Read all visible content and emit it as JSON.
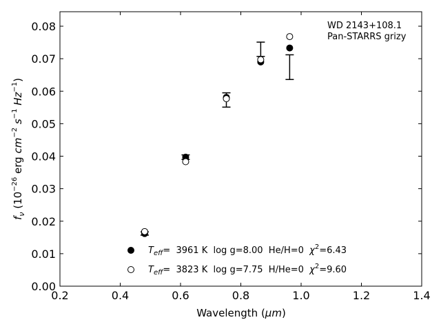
{
  "chart_data": {
    "type": "scatter",
    "title": "",
    "annotation": [
      "WD 2143+108.1",
      "Pan-STARRS grizy"
    ],
    "xlabel": {
      "main": "Wavelength (",
      "unit": "μm",
      "close": ")"
    },
    "ylabel": {
      "f": "f",
      "fsub": "ν",
      "open": " (10",
      "exp1": "−26",
      "erg": " erg ",
      "cm": "cm",
      "exp2": "−2",
      "s": "s",
      "exp3": "−1",
      "Hz": "Hz",
      "exp4": "−1",
      "close": ")"
    },
    "xlim": [
      0.2,
      1.4
    ],
    "ylim": [
      0.0,
      0.085
    ],
    "xticks": [
      0.2,
      0.4,
      0.6,
      0.8,
      1.0,
      1.2,
      1.4
    ],
    "xtick_labels": [
      "0.2",
      "0.4",
      "0.6",
      "0.8",
      "1.0",
      "1.2",
      "1.4"
    ],
    "yticks": [
      0.0,
      0.01,
      0.02,
      0.03,
      0.04,
      0.05,
      0.06,
      0.07,
      0.08
    ],
    "ytick_labels": [
      "0.00",
      "0.01",
      "0.02",
      "0.03",
      "0.04",
      "0.05",
      "0.06",
      "0.07",
      "0.08"
    ],
    "grid": false,
    "legend_position": "bottom-center",
    "observed": {
      "x": [
        0.481,
        0.617,
        0.752,
        0.866,
        0.962
      ],
      "y": [
        0.0162,
        0.0397,
        0.0573,
        0.0729,
        0.0674
      ],
      "yerr": [
        0.0005,
        0.0007,
        0.0022,
        0.0022,
        0.0038
      ]
    },
    "series": [
      {
        "name": "He/H=0",
        "marker": "filled-circle",
        "color": "#000000",
        "label_parts": {
          "t": "T",
          "sub": "eff",
          "eq": "=  3961 K  log g=8.00  He/H=0  ",
          "chi": "χ",
          "sup": "2",
          "val": "=6.43"
        },
        "x": [
          0.481,
          0.617,
          0.752,
          0.866,
          0.962
        ],
        "y": [
          0.0162,
          0.0397,
          0.0581,
          0.069,
          0.0733
        ]
      },
      {
        "name": "H/He=0",
        "marker": "open-circle",
        "color": "#000000",
        "label_parts": {
          "t": "T",
          "sub": "eff",
          "eq": "=  3823 K  log g=7.75  H/He=0  ",
          "chi": "χ",
          "sup": "2",
          "val": "=9.60"
        },
        "x": [
          0.481,
          0.617,
          0.752,
          0.866,
          0.962
        ],
        "y": [
          0.0168,
          0.0383,
          0.0577,
          0.0697,
          0.0768
        ]
      }
    ]
  }
}
